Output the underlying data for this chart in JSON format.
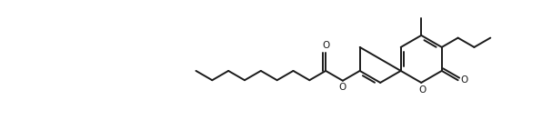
{
  "line_color": "#1a1a1a",
  "bg_color": "#ffffff",
  "lw": 1.4,
  "figsize": [
    5.96,
    1.32
  ],
  "dpi": 100,
  "xlim": [
    0,
    11.0
  ],
  "ylim": [
    0,
    2.0
  ],
  "ring_r": 0.48
}
